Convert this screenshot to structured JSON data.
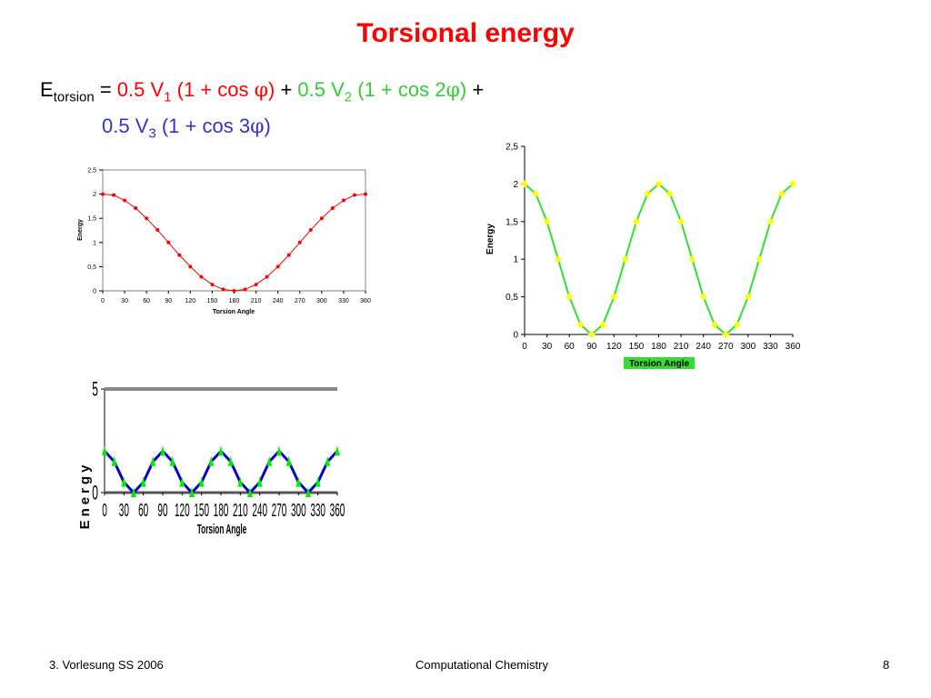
{
  "slide": {
    "title": "Torsional energy",
    "equation": {
      "e": "E",
      "e_sub": "torsion",
      "eq_sign": " = ",
      "t1_coef": "0.5 V",
      "t1_sub": "1",
      "t1_open": " (1 + cos ",
      "t1_phi": "φ",
      "t1_close": ")",
      "plus1": " + ",
      "t2_coef": "0.5 V",
      "t2_sub": "2",
      "t2_open": " (1 + cos 2",
      "t2_phi": "φ",
      "t2_close": ")",
      "plus2": " +",
      "t3_coef": "0.5 V",
      "t3_sub": "3",
      "t3_open": " (1 + cos 3",
      "t3_phi": "φ",
      "t3_close": ")"
    },
    "footer": {
      "left": "3. Vorlesung SS 2006",
      "center": "Computational Chemistry",
      "right": "8"
    },
    "colors": {
      "title": "#ff0000",
      "term1": "#ff0000",
      "term2": "#33cc33",
      "term3": "#3333cc"
    }
  },
  "chart_data": [
    {
      "type": "line",
      "xlabel": "Torsion Angle",
      "ylabel": "Energy",
      "x": [
        0,
        15,
        30,
        45,
        60,
        75,
        90,
        105,
        120,
        135,
        150,
        165,
        180,
        195,
        210,
        225,
        240,
        255,
        270,
        285,
        300,
        315,
        330,
        345,
        360
      ],
      "y": [
        2,
        1.98,
        1.87,
        1.71,
        1.5,
        1.26,
        1,
        0.74,
        0.5,
        0.29,
        0.13,
        0.03,
        0,
        0.03,
        0.13,
        0.29,
        0.5,
        0.74,
        1,
        1.26,
        1.5,
        1.71,
        1.87,
        1.98,
        2
      ],
      "xticks": [
        "0",
        "30",
        "60",
        "90",
        "120",
        "150",
        "180",
        "210",
        "240",
        "270",
        "300",
        "330",
        "360"
      ],
      "yticks": [
        "0",
        "0,5",
        "1",
        "1,5",
        "2",
        "2,5"
      ],
      "xlim": [
        0,
        360
      ],
      "ylim": [
        0,
        2.5
      ],
      "line_color": "#ff0000",
      "marker_color": "#ff0000",
      "grid": false
    },
    {
      "type": "line",
      "xlabel": "Torsion Angle",
      "ylabel": "Energy",
      "x": [
        0,
        15,
        30,
        45,
        60,
        75,
        90,
        105,
        120,
        135,
        150,
        165,
        180,
        195,
        210,
        225,
        240,
        255,
        270,
        285,
        300,
        315,
        330,
        345,
        360
      ],
      "y": [
        2,
        1.87,
        1.5,
        1,
        0.5,
        0.13,
        0,
        0.13,
        0.5,
        1,
        1.5,
        1.87,
        2,
        1.87,
        1.5,
        1,
        0.5,
        0.13,
        0,
        0.13,
        0.5,
        1,
        1.5,
        1.87,
        2
      ],
      "xticks": [
        "0",
        "30",
        "60",
        "90",
        "120",
        "150",
        "180",
        "210",
        "240",
        "270",
        "300",
        "330",
        "360"
      ],
      "yticks": [
        "0",
        "0,5",
        "1",
        "1,5",
        "2",
        "2,5"
      ],
      "xlim": [
        0,
        360
      ],
      "ylim": [
        0,
        2.5
      ],
      "line_color": "#33dd33",
      "marker_color": "#ffff00",
      "xlabel_bg": "#33dd33",
      "grid": false
    },
    {
      "type": "line",
      "xlabel": "Torsion Angle",
      "ylabel": "Energy",
      "x": [
        0,
        15,
        30,
        45,
        60,
        75,
        90,
        105,
        120,
        135,
        150,
        165,
        180,
        195,
        210,
        225,
        240,
        255,
        270,
        285,
        300,
        315,
        330,
        345,
        360
      ],
      "y": [
        2,
        1.5,
        0.5,
        0,
        0.5,
        1.5,
        2,
        1.5,
        0.5,
        0,
        0.5,
        1.5,
        2,
        1.5,
        0.5,
        0,
        0.5,
        1.5,
        2,
        1.5,
        0.5,
        0,
        0.5,
        1.5,
        2
      ],
      "xticks": [
        "0",
        "30",
        "60",
        "90",
        "120",
        "150",
        "180",
        "210",
        "240",
        "270",
        "300",
        "330",
        "360"
      ],
      "yticks": [
        "0",
        "5"
      ],
      "xlim": [
        0,
        360
      ],
      "ylim": [
        0,
        5
      ],
      "line_color": "#0000cc",
      "marker_color": "#00ee00",
      "grid": false
    }
  ]
}
